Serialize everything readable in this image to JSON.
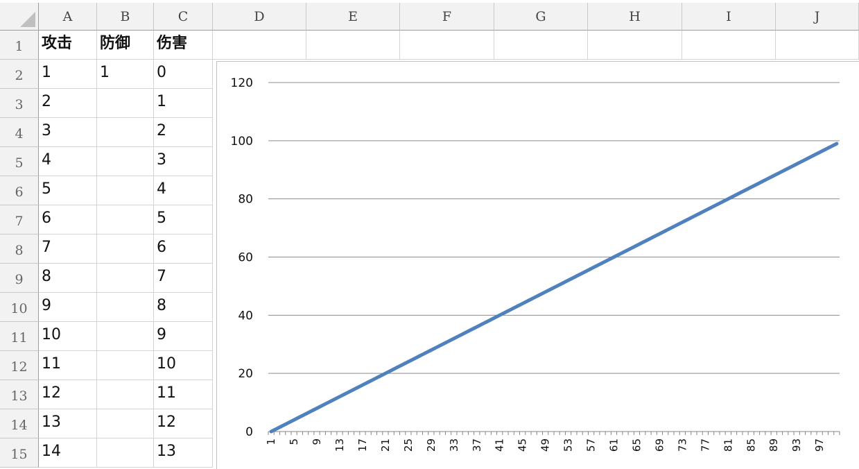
{
  "spreadsheet": {
    "columns": [
      "A",
      "B",
      "C",
      "D",
      "E",
      "F",
      "G",
      "H",
      "I",
      "J"
    ],
    "rows": [
      "1",
      "2",
      "3",
      "4",
      "5",
      "6",
      "7",
      "8",
      "9",
      "10",
      "11",
      "12",
      "13",
      "14",
      "15"
    ],
    "cells": {
      "A": [
        "攻击",
        "1",
        "2",
        "3",
        "4",
        "5",
        "6",
        "7",
        "8",
        "9",
        "10",
        "11",
        "12",
        "13",
        "14"
      ],
      "B": [
        "防御",
        "1",
        "",
        "",
        "",
        "",
        "",
        "",
        "",
        "",
        "",
        "",
        "",
        "",
        ""
      ],
      "C": [
        "伤害",
        "0",
        "1",
        "2",
        "3",
        "4",
        "5",
        "6",
        "7",
        "8",
        "9",
        "10",
        "11",
        "12",
        "13"
      ]
    }
  },
  "chart_data": {
    "type": "line",
    "x_start": 1,
    "x_end": 100,
    "x_tick_labels": [
      "1",
      "5",
      "9",
      "13",
      "17",
      "21",
      "25",
      "29",
      "33",
      "37",
      "41",
      "45",
      "49",
      "53",
      "57",
      "61",
      "65",
      "69",
      "73",
      "77",
      "81",
      "85",
      "89",
      "93",
      "97"
    ],
    "series": [
      {
        "values_rule": "value = category - 1",
        "values_from": 0,
        "values_to": 99,
        "color": "#4f81bd"
      }
    ],
    "ylim": [
      0,
      120
    ],
    "y_ticks": [
      "0",
      "20",
      "40",
      "60",
      "80",
      "100",
      "120"
    ],
    "gridlines": true,
    "legend": "none"
  }
}
